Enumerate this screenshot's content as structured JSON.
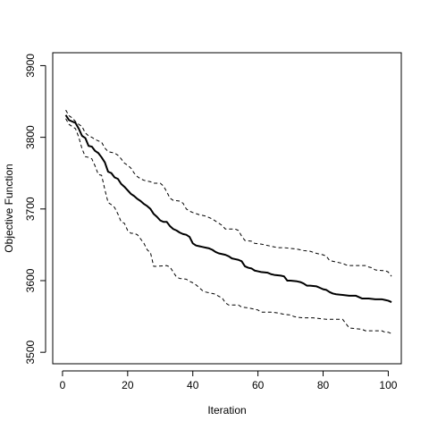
{
  "chart_data": {
    "type": "line",
    "title": "",
    "xlabel": "Iteration",
    "ylabel": "Objective Function",
    "xlim": [
      -3.0,
      104.0
    ],
    "ylim": [
      3484,
      3918
    ],
    "xticks": [
      0,
      20,
      40,
      60,
      80,
      100
    ],
    "yticks": [
      3500,
      3600,
      3700,
      3800,
      3900
    ],
    "grid": false,
    "legend": "none",
    "series": [
      {
        "style": "solid",
        "color": "#000000",
        "points": [
          [
            1,
            3831
          ],
          [
            2,
            3824
          ],
          [
            4,
            3820
          ],
          [
            5,
            3812
          ],
          [
            6,
            3802
          ],
          [
            7,
            3799
          ],
          [
            8,
            3788
          ],
          [
            9,
            3787
          ],
          [
            10,
            3781
          ],
          [
            11,
            3778
          ],
          [
            12,
            3772
          ],
          [
            13,
            3765
          ],
          [
            14,
            3752
          ],
          [
            15,
            3750
          ],
          [
            16,
            3744
          ],
          [
            17,
            3742
          ],
          [
            18,
            3735
          ],
          [
            19,
            3731
          ],
          [
            20,
            3726
          ],
          [
            21,
            3721
          ],
          [
            22,
            3718
          ],
          [
            23,
            3714
          ],
          [
            24,
            3711
          ],
          [
            25,
            3707
          ],
          [
            26,
            3704
          ],
          [
            27,
            3700
          ],
          [
            28,
            3693
          ],
          [
            29,
            3689
          ],
          [
            30,
            3684
          ],
          [
            31,
            3682
          ],
          [
            32,
            3682
          ],
          [
            33,
            3676
          ],
          [
            34,
            3672
          ],
          [
            35,
            3670
          ],
          [
            36,
            3667
          ],
          [
            37,
            3665
          ],
          [
            38,
            3664
          ],
          [
            39,
            3661
          ],
          [
            40,
            3652
          ],
          [
            41,
            3649
          ],
          [
            42,
            3648
          ],
          [
            43,
            3647
          ],
          [
            44,
            3646
          ],
          [
            45,
            3645
          ],
          [
            46,
            3643
          ],
          [
            47,
            3640
          ],
          [
            48,
            3638
          ],
          [
            50,
            3636
          ],
          [
            51,
            3634
          ],
          [
            52,
            3631
          ],
          [
            53,
            3630
          ],
          [
            54,
            3629
          ],
          [
            55,
            3627
          ],
          [
            56,
            3620
          ],
          [
            57,
            3618
          ],
          [
            58,
            3617
          ],
          [
            59,
            3614
          ],
          [
            60,
            3613
          ],
          [
            61,
            3612
          ],
          [
            63,
            3611
          ],
          [
            64,
            3609
          ],
          [
            65,
            3608
          ],
          [
            67,
            3607
          ],
          [
            68,
            3606
          ],
          [
            69,
            3600
          ],
          [
            70,
            3600
          ],
          [
            72,
            3599
          ],
          [
            73,
            3598
          ],
          [
            74,
            3596
          ],
          [
            75,
            3593
          ],
          [
            76,
            3593
          ],
          [
            78,
            3592
          ],
          [
            79,
            3590
          ],
          [
            80,
            3588
          ],
          [
            81,
            3587
          ],
          [
            82,
            3584
          ],
          [
            83,
            3582
          ],
          [
            84,
            3581
          ],
          [
            86,
            3580
          ],
          [
            88,
            3579
          ],
          [
            90,
            3579
          ],
          [
            91,
            3577
          ],
          [
            92,
            3575
          ],
          [
            94,
            3575
          ],
          [
            96,
            3574
          ],
          [
            98,
            3574
          ],
          [
            99,
            3573
          ],
          [
            100,
            3572
          ],
          [
            101,
            3570
          ]
        ]
      },
      {
        "style": "dashed",
        "color": "#000000",
        "points": [
          [
            1,
            3838
          ],
          [
            2,
            3830
          ],
          [
            3,
            3827
          ],
          [
            4,
            3822
          ],
          [
            5,
            3818
          ],
          [
            6,
            3815
          ],
          [
            7,
            3806
          ],
          [
            8,
            3802
          ],
          [
            9,
            3800
          ],
          [
            10,
            3797
          ],
          [
            12,
            3793
          ],
          [
            13,
            3785
          ],
          [
            14,
            3780
          ],
          [
            16,
            3778
          ],
          [
            17,
            3775
          ],
          [
            18,
            3770
          ],
          [
            19,
            3764
          ],
          [
            20,
            3761
          ],
          [
            21,
            3757
          ],
          [
            22,
            3750
          ],
          [
            23,
            3745
          ],
          [
            24,
            3742
          ],
          [
            25,
            3740
          ],
          [
            27,
            3738
          ],
          [
            28,
            3736
          ],
          [
            30,
            3736
          ],
          [
            31,
            3732
          ],
          [
            32,
            3724
          ],
          [
            33,
            3715
          ],
          [
            34,
            3712
          ],
          [
            36,
            3711
          ],
          [
            37,
            3708
          ],
          [
            38,
            3700
          ],
          [
            39,
            3697
          ],
          [
            40,
            3695
          ],
          [
            42,
            3692
          ],
          [
            43,
            3691
          ],
          [
            44,
            3690
          ],
          [
            45,
            3688
          ],
          [
            46,
            3686
          ],
          [
            47,
            3683
          ],
          [
            48,
            3680
          ],
          [
            49,
            3677
          ],
          [
            50,
            3672
          ],
          [
            53,
            3672
          ],
          [
            54,
            3670
          ],
          [
            55,
            3662
          ],
          [
            56,
            3656
          ],
          [
            58,
            3655
          ],
          [
            59,
            3652
          ],
          [
            61,
            3651
          ],
          [
            62,
            3650
          ],
          [
            64,
            3648
          ],
          [
            65,
            3647
          ],
          [
            66,
            3646
          ],
          [
            68,
            3646
          ],
          [
            70,
            3645
          ],
          [
            72,
            3644
          ],
          [
            73,
            3643
          ],
          [
            74,
            3642
          ],
          [
            76,
            3641
          ],
          [
            78,
            3638
          ],
          [
            80,
            3636
          ],
          [
            81,
            3634
          ],
          [
            82,
            3628
          ],
          [
            84,
            3626
          ],
          [
            85,
            3625
          ],
          [
            86,
            3624
          ],
          [
            87,
            3622
          ],
          [
            88,
            3621
          ],
          [
            91,
            3621
          ],
          [
            93,
            3621
          ],
          [
            94,
            3619
          ],
          [
            95,
            3618
          ],
          [
            96,
            3615
          ],
          [
            98,
            3614
          ],
          [
            99,
            3614
          ],
          [
            100,
            3612
          ],
          [
            101,
            3606
          ]
        ]
      },
      {
        "style": "dashed",
        "color": "#000000",
        "points": [
          [
            1,
            3826
          ],
          [
            2,
            3818
          ],
          [
            3,
            3815
          ],
          [
            4,
            3812
          ],
          [
            5,
            3800
          ],
          [
            6,
            3784
          ],
          [
            7,
            3773
          ],
          [
            8,
            3772
          ],
          [
            9,
            3770
          ],
          [
            10,
            3760
          ],
          [
            11,
            3748
          ],
          [
            12,
            3747
          ],
          [
            13,
            3727
          ],
          [
            14,
            3709
          ],
          [
            15,
            3706
          ],
          [
            16,
            3702
          ],
          [
            17,
            3693
          ],
          [
            18,
            3682
          ],
          [
            19,
            3680
          ],
          [
            20,
            3670
          ],
          [
            21,
            3666
          ],
          [
            22,
            3666
          ],
          [
            23,
            3664
          ],
          [
            24,
            3658
          ],
          [
            25,
            3652
          ],
          [
            26,
            3643
          ],
          [
            27,
            3639
          ],
          [
            28,
            3620
          ],
          [
            29,
            3620
          ],
          [
            32,
            3621
          ],
          [
            33,
            3619
          ],
          [
            34,
            3612
          ],
          [
            35,
            3605
          ],
          [
            36,
            3603
          ],
          [
            38,
            3602
          ],
          [
            39,
            3599
          ],
          [
            40,
            3597
          ],
          [
            41,
            3594
          ],
          [
            42,
            3590
          ],
          [
            43,
            3586
          ],
          [
            44,
            3584
          ],
          [
            46,
            3582
          ],
          [
            47,
            3581
          ],
          [
            48,
            3578
          ],
          [
            49,
            3576
          ],
          [
            50,
            3569
          ],
          [
            51,
            3566
          ],
          [
            54,
            3566
          ],
          [
            55,
            3563
          ],
          [
            57,
            3562
          ],
          [
            58,
            3561
          ],
          [
            60,
            3559
          ],
          [
            61,
            3556
          ],
          [
            64,
            3556
          ],
          [
            66,
            3555
          ],
          [
            67,
            3554
          ],
          [
            68,
            3553
          ],
          [
            70,
            3552
          ],
          [
            71,
            3550
          ],
          [
            72,
            3549
          ],
          [
            74,
            3548
          ],
          [
            77,
            3548
          ],
          [
            79,
            3547
          ],
          [
            81,
            3546
          ],
          [
            86,
            3546
          ],
          [
            87,
            3540
          ],
          [
            88,
            3534
          ],
          [
            90,
            3533
          ],
          [
            92,
            3532
          ],
          [
            93,
            3530
          ],
          [
            96,
            3530
          ],
          [
            98,
            3530
          ],
          [
            99,
            3528
          ],
          [
            100,
            3528
          ],
          [
            101,
            3526
          ]
        ]
      }
    ]
  }
}
